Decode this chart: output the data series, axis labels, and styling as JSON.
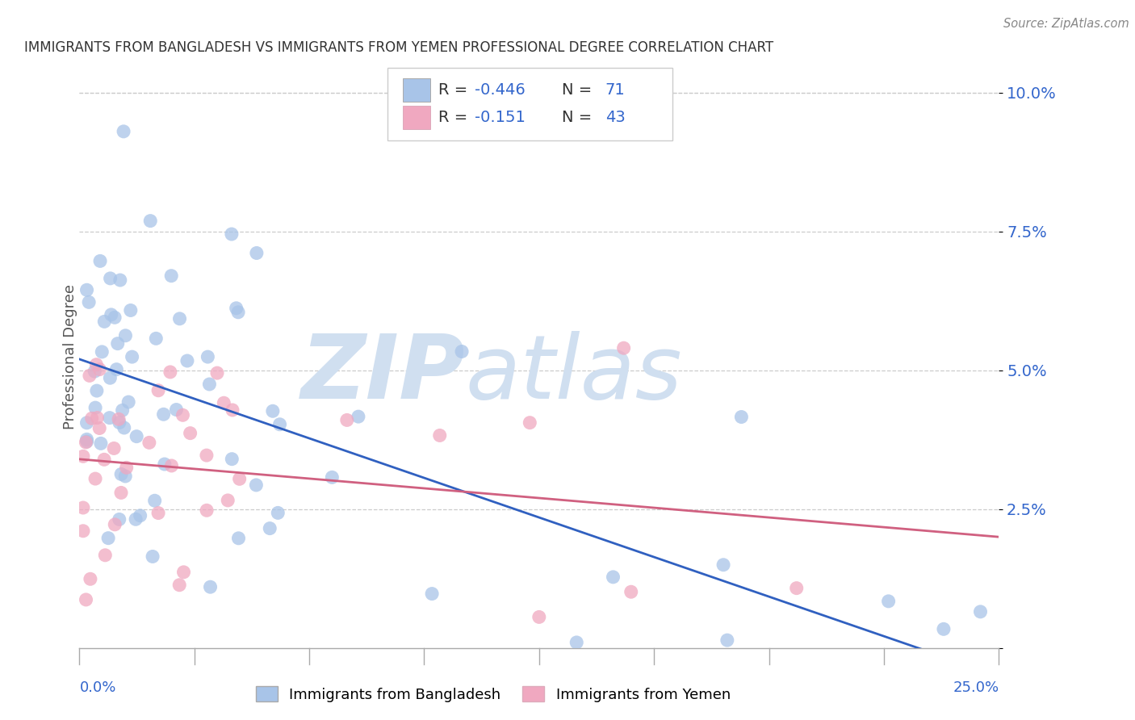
{
  "title": "IMMIGRANTS FROM BANGLADESH VS IMMIGRANTS FROM YEMEN PROFESSIONAL DEGREE CORRELATION CHART",
  "source": "Source: ZipAtlas.com",
  "ylabel": "Professional Degree",
  "legend_label1": "Immigrants from Bangladesh",
  "legend_label2": "Immigrants from Yemen",
  "R1": -0.446,
  "N1": 71,
  "R2": -0.151,
  "N2": 43,
  "color_blue": "#a8c4e8",
  "color_pink": "#f0a8c0",
  "line_blue": "#3060c0",
  "line_pink": "#d06080",
  "text_blue": "#3366cc",
  "watermark_color": "#d0dff0",
  "xlim": [
    0.0,
    0.25
  ],
  "ylim": [
    0.0,
    0.105
  ],
  "yticks": [
    0.0,
    0.025,
    0.05,
    0.075,
    0.1
  ],
  "ytick_labels": [
    "",
    "2.5%",
    "5.0%",
    "7.5%",
    "10.0%"
  ],
  "bang_trend_start": 0.052,
  "bang_trend_end": -0.005,
  "yemen_trend_start": 0.034,
  "yemen_trend_end": 0.02
}
